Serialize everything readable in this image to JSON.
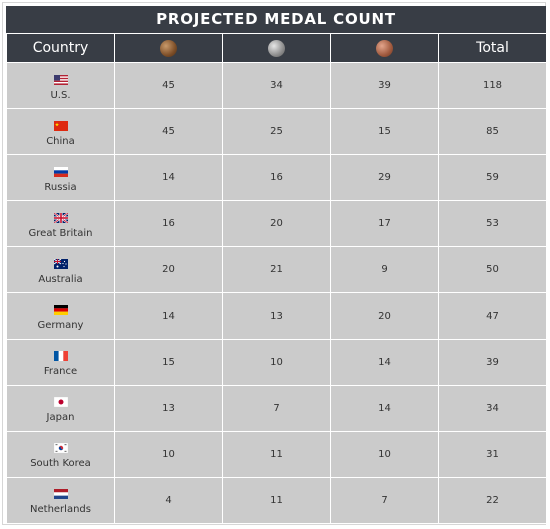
{
  "title": "PROJECTED MEDAL COUNT",
  "headers": {
    "country": "Country",
    "gold": "gold-medal-icon",
    "silver": "silver-medal-icon",
    "bronze": "bronze-medal-icon",
    "total": "Total"
  },
  "rows": [
    {
      "country": "U.S.",
      "flag": "usa-flag-icon",
      "gold": "45",
      "silver": "34",
      "bronze": "39",
      "total": "118"
    },
    {
      "country": "China",
      "flag": "china-flag-icon",
      "gold": "45",
      "silver": "25",
      "bronze": "15",
      "total": "85"
    },
    {
      "country": "Russia",
      "flag": "russia-flag-icon",
      "gold": "14",
      "silver": "16",
      "bronze": "29",
      "total": "59"
    },
    {
      "country": "Great Britain",
      "flag": "uk-flag-icon",
      "gold": "16",
      "silver": "20",
      "bronze": "17",
      "total": "53"
    },
    {
      "country": "Australia",
      "flag": "australia-flag-icon",
      "gold": "20",
      "silver": "21",
      "bronze": "9",
      "total": "50"
    },
    {
      "country": "Germany",
      "flag": "germany-flag-icon",
      "gold": "14",
      "silver": "13",
      "bronze": "20",
      "total": "47"
    },
    {
      "country": "France",
      "flag": "france-flag-icon",
      "gold": "15",
      "silver": "10",
      "bronze": "14",
      "total": "39"
    },
    {
      "country": "Japan",
      "flag": "japan-flag-icon",
      "gold": "13",
      "silver": "7",
      "bronze": "14",
      "total": "34"
    },
    {
      "country": "South Korea",
      "flag": "south-korea-flag-icon",
      "gold": "10",
      "silver": "11",
      "bronze": "10",
      "total": "31"
    },
    {
      "country": "Netherlands",
      "flag": "netherlands-flag-icon",
      "gold": "4",
      "silver": "11",
      "bronze": "7",
      "total": "22"
    }
  ],
  "colors": {
    "header_bg": "#383d45",
    "cell_bg": "#cbcbcb",
    "text": "#333333"
  }
}
